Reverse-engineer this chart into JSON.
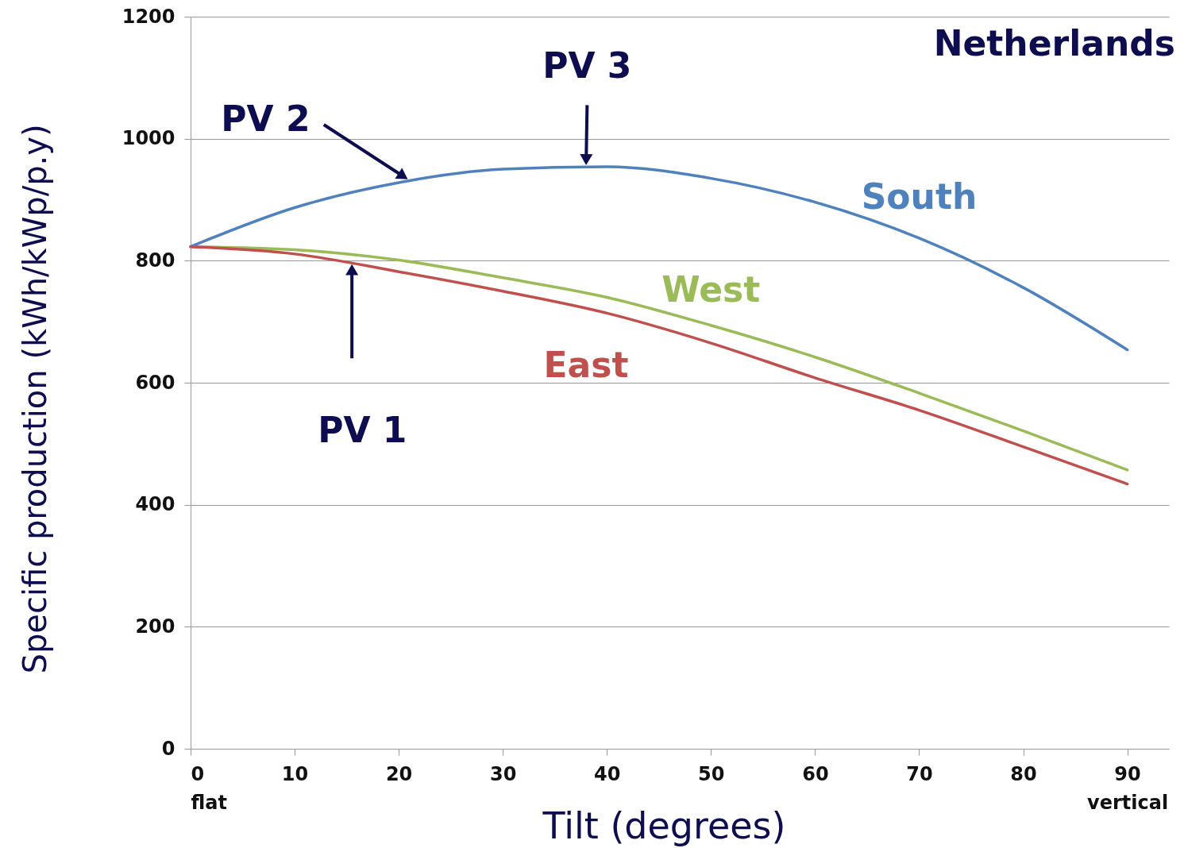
{
  "chart_data": {
    "type": "line",
    "xlabel": "Tilt (degrees)",
    "ylabel": "Specific production (kWh/kWp/p.y)",
    "x": [
      0,
      10,
      20,
      30,
      40,
      50,
      60,
      70,
      80,
      90
    ],
    "series": [
      {
        "name": "South",
        "color": "#4f81bd",
        "values": [
          823,
          887,
          928,
          950,
          954,
          935,
          896,
          837,
          756,
          654
        ]
      },
      {
        "name": "West",
        "color": "#9bbb59",
        "values": [
          823,
          818,
          801,
          772,
          740,
          694,
          642,
          583,
          521,
          457
        ]
      },
      {
        "name": "East",
        "color": "#c0504d",
        "values": [
          823,
          811,
          782,
          750,
          714,
          665,
          608,
          555,
          495,
          434
        ]
      }
    ],
    "annotations": [
      "Netherlands",
      "PV 1",
      "PV 2",
      {
        "text": "PV 3",
        "x": 38,
        "y": 954
      }
    ],
    "xlim": [
      0,
      94
    ],
    "ylim": [
      0,
      1200
    ],
    "xticks": [
      {
        "value": 0,
        "label": "0\nflat"
      },
      10,
      20,
      30,
      40,
      50,
      60,
      70,
      80,
      {
        "value": 90,
        "label": "90\nvertical"
      }
    ],
    "yticks": [
      0,
      200,
      400,
      600,
      800,
      1000,
      1200
    ],
    "grid": "y",
    "line_style": "solid"
  }
}
